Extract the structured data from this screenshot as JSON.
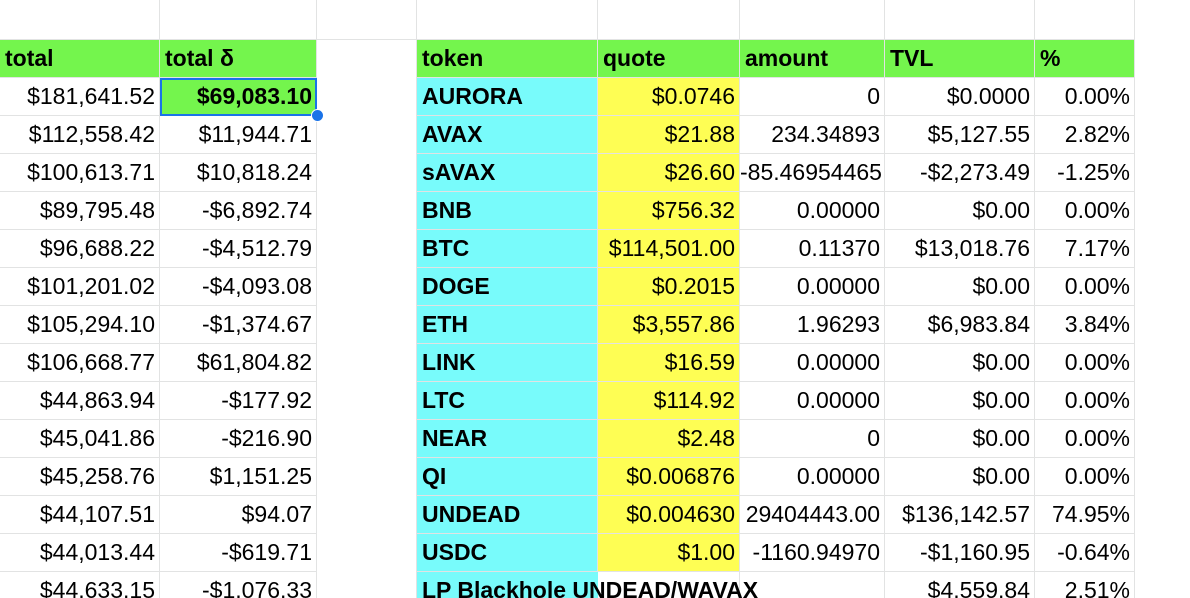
{
  "left_table": {
    "headers": {
      "total": "total",
      "delta": "total δ"
    },
    "rows": [
      {
        "total": "$181,641.52",
        "delta": "$69,083.10"
      },
      {
        "total": "$112,558.42",
        "delta": "$11,944.71"
      },
      {
        "total": "$100,613.71",
        "delta": "$10,818.24"
      },
      {
        "total": "$89,795.48",
        "delta": "-$6,892.74"
      },
      {
        "total": "$96,688.22",
        "delta": "-$4,512.79"
      },
      {
        "total": "$101,201.02",
        "delta": "-$4,093.08"
      },
      {
        "total": "$105,294.10",
        "delta": "-$1,374.67"
      },
      {
        "total": "$106,668.77",
        "delta": "$61,804.82"
      },
      {
        "total": "$44,863.94",
        "delta": "-$177.92"
      },
      {
        "total": "$45,041.86",
        "delta": "-$216.90"
      },
      {
        "total": "$45,258.76",
        "delta": "$1,151.25"
      },
      {
        "total": "$44,107.51",
        "delta": "$94.07"
      },
      {
        "total": "$44,013.44",
        "delta": "-$619.71"
      },
      {
        "total": "$44,633.15",
        "delta": "-$1,076.33"
      }
    ]
  },
  "right_table": {
    "headers": {
      "token": "token",
      "quote": "quote",
      "amount": "amount",
      "tvl": "TVL",
      "pct": "%"
    },
    "rows": [
      {
        "token": "AURORA",
        "quote": "$0.0746",
        "amount": "0",
        "tvl": "$0.0000",
        "pct": "0.00%"
      },
      {
        "token": "AVAX",
        "quote": "$21.88",
        "amount": "234.34893",
        "tvl": "$5,127.55",
        "pct": "2.82%"
      },
      {
        "token": "sAVAX",
        "quote": "$26.60",
        "amount": "-85.46954465",
        "tvl": "-$2,273.49",
        "pct": "-1.25%"
      },
      {
        "token": "BNB",
        "quote": "$756.32",
        "amount": "0.00000",
        "tvl": "$0.00",
        "pct": "0.00%"
      },
      {
        "token": "BTC",
        "quote": "$114,501.00",
        "amount": "0.11370",
        "tvl": "$13,018.76",
        "pct": "7.17%"
      },
      {
        "token": "DOGE",
        "quote": "$0.2015",
        "amount": "0.00000",
        "tvl": "$0.00",
        "pct": "0.00%"
      },
      {
        "token": "ETH",
        "quote": "$3,557.86",
        "amount": "1.96293",
        "tvl": "$6,983.84",
        "pct": "3.84%"
      },
      {
        "token": "LINK",
        "quote": "$16.59",
        "amount": "0.00000",
        "tvl": "$0.00",
        "pct": "0.00%"
      },
      {
        "token": "LTC",
        "quote": "$114.92",
        "amount": "0.00000",
        "tvl": "$0.00",
        "pct": "0.00%"
      },
      {
        "token": "NEAR",
        "quote": "$2.48",
        "amount": "0",
        "tvl": "$0.00",
        "pct": "0.00%"
      },
      {
        "token": "QI",
        "quote": "$0.006876",
        "amount": "0.00000",
        "tvl": "$0.00",
        "pct": "0.00%"
      },
      {
        "token": "UNDEAD",
        "quote": "$0.004630",
        "amount": "29404443.00",
        "tvl": "$136,142.57",
        "pct": "74.95%"
      },
      {
        "token": "USDC",
        "quote": "$1.00",
        "amount": "-1160.94970",
        "tvl": "-$1,160.95",
        "pct": "-0.64%"
      },
      {
        "token": "LP Blackhole UNDEAD/WAVAX",
        "quote": "",
        "amount": "",
        "tvl": "$4,559.84",
        "pct": "2.51%"
      }
    ]
  },
  "colors": {
    "header_green": "#74f54d",
    "token_cyan": "#78fbfb",
    "quote_yellow": "#fefe54",
    "selection_blue": "#1a73e8",
    "gridline": "#e2e3e3"
  }
}
